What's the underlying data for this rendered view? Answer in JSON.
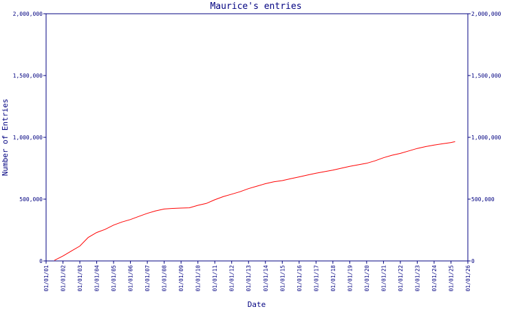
{
  "chart_data": {
    "type": "line",
    "title": "Maurice's entries",
    "xlabel": "Date",
    "ylabel": "Number of Entries",
    "x_ticks": [
      "01/01/01",
      "01/01/02",
      "01/01/03",
      "01/01/04",
      "01/01/05",
      "01/01/06",
      "01/01/07",
      "01/01/08",
      "01/01/09",
      "01/01/10",
      "01/01/11",
      "01/01/12",
      "01/01/13",
      "01/01/14",
      "01/01/15",
      "01/01/16",
      "01/01/17",
      "01/01/18",
      "01/01/19",
      "01/01/20",
      "01/01/21",
      "01/01/22",
      "01/01/23",
      "01/01/24",
      "01/01/25",
      "01/01/26"
    ],
    "xlim": [
      "2001-01-01",
      "2026-01-01"
    ],
    "y_ticks": [
      0,
      500000,
      1000000,
      1500000,
      2000000
    ],
    "y_tick_labels": [
      "0",
      "500,000",
      "1,000,000",
      "1,500,000",
      "2,000,000"
    ],
    "ylim": [
      0,
      2000000
    ],
    "grid": false,
    "line_color": "#ff0000",
    "axis_color": "#000080",
    "series": [
      {
        "x": [
          "2001-07-01",
          "2002-01-01",
          "2002-07-01",
          "2003-01-01",
          "2003-07-01",
          "2004-01-01",
          "2004-07-01",
          "2005-01-01",
          "2005-07-01",
          "2006-01-01",
          "2006-07-01",
          "2007-01-01",
          "2007-07-01",
          "2008-01-01",
          "2008-07-01",
          "2009-01-01",
          "2009-07-01",
          "2010-01-01",
          "2010-07-01",
          "2011-01-01",
          "2011-07-01",
          "2012-01-01",
          "2012-07-01",
          "2013-01-01",
          "2013-07-01",
          "2014-01-01",
          "2014-07-01",
          "2015-01-01",
          "2015-07-01",
          "2016-01-01",
          "2016-07-01",
          "2017-01-01",
          "2017-07-01",
          "2018-01-01",
          "2018-07-01",
          "2019-01-01",
          "2019-07-01",
          "2020-01-01",
          "2020-07-01",
          "2021-01-01",
          "2021-07-01",
          "2022-01-01",
          "2022-07-01",
          "2023-01-01",
          "2023-07-01",
          "2024-01-01",
          "2024-07-01",
          "2025-01-01",
          "2025-04-01"
        ],
        "values": [
          5000,
          40000,
          80000,
          120000,
          190000,
          230000,
          255000,
          290000,
          315000,
          335000,
          360000,
          385000,
          405000,
          420000,
          425000,
          428000,
          430000,
          450000,
          465000,
          495000,
          520000,
          540000,
          560000,
          585000,
          605000,
          625000,
          640000,
          650000,
          665000,
          680000,
          695000,
          710000,
          722000,
          735000,
          750000,
          765000,
          778000,
          790000,
          810000,
          835000,
          855000,
          870000,
          890000,
          910000,
          925000,
          938000,
          948000,
          958000,
          965000
        ]
      }
    ]
  }
}
